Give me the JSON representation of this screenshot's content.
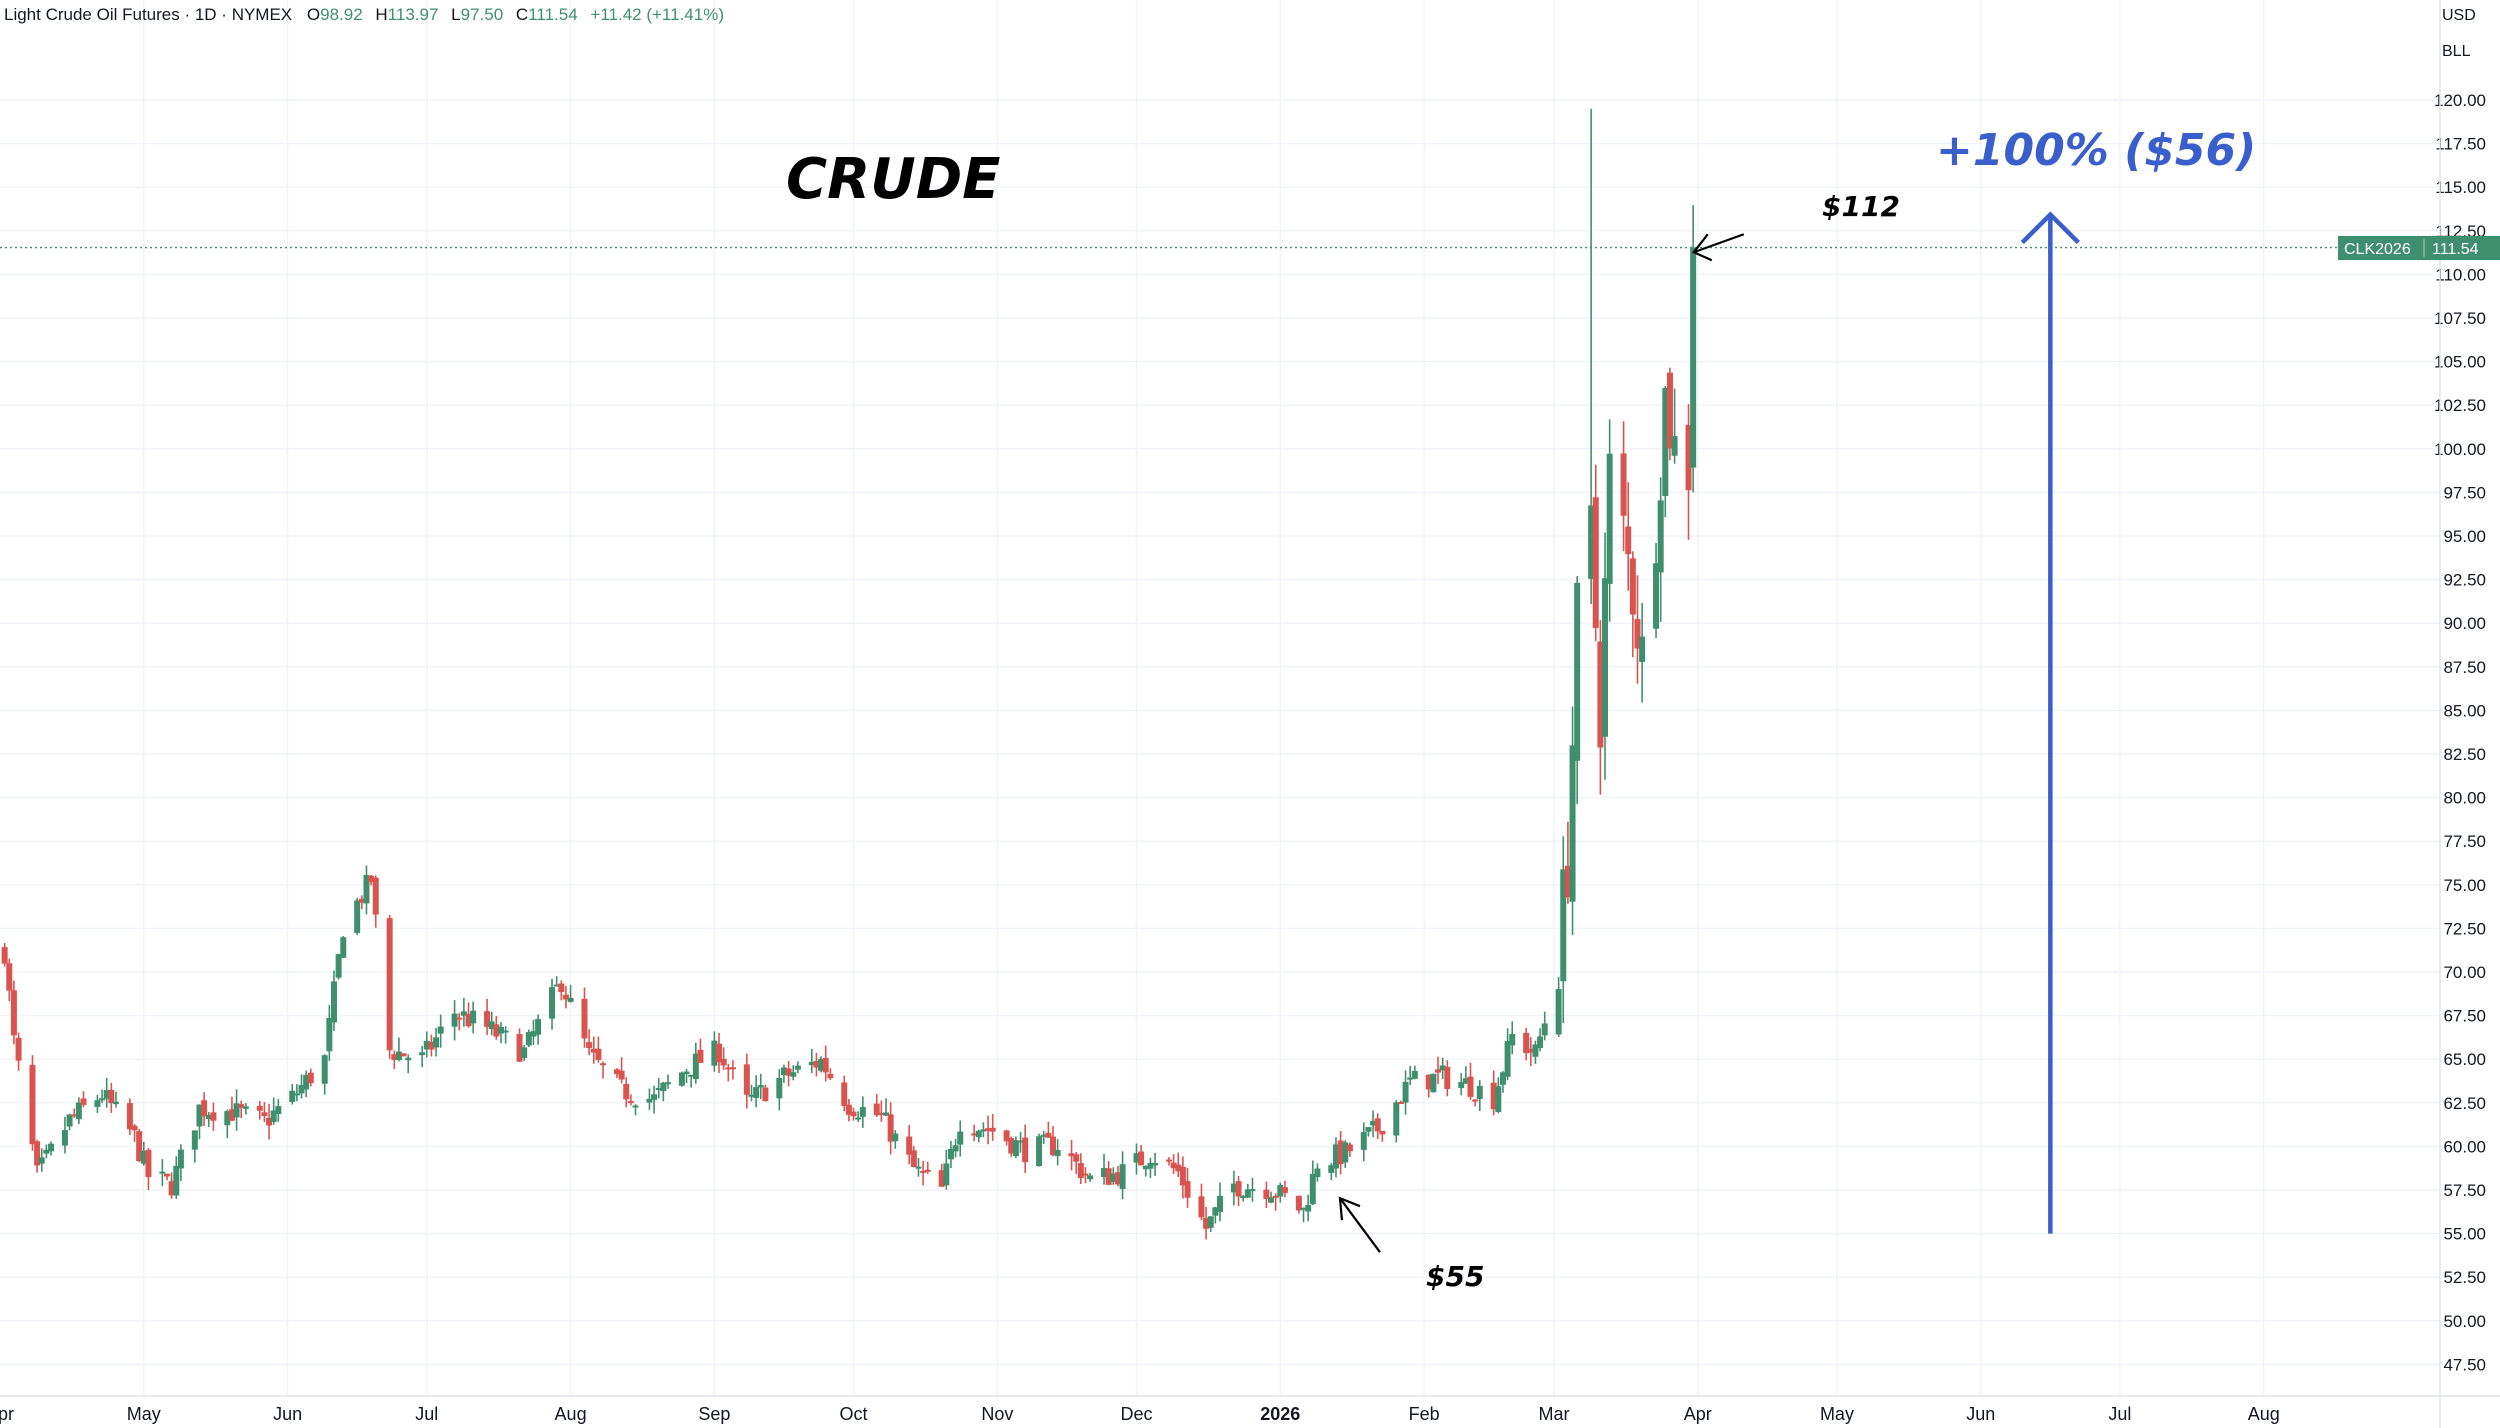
{
  "header": {
    "symbol_name": "Light Crude Oil Futures · 1D · NYMEX",
    "open_label": "O",
    "open_value": "98.92",
    "high_label": "H",
    "high_value": "113.97",
    "low_label": "L",
    "low_value": "97.50",
    "close_label": "C",
    "close_value": "111.54",
    "change": "+11.42 (+11.41%)"
  },
  "currency": {
    "currency": "USD",
    "unit": "BLL"
  },
  "price_tag": {
    "symbol": "CLK2026",
    "price": "111.54"
  },
  "annotations": {
    "title": "CRUDE",
    "high_callout": "$112",
    "low_callout": "$55",
    "gain_callout": "+100% ($56)"
  },
  "colors": {
    "up": "#3f8f6f",
    "down": "#d9534f",
    "accent_blue": "#3a5fcd",
    "grid": "#f0f3fa",
    "price_line": "#3f8f6f"
  },
  "chart_data": {
    "type": "candlestick",
    "title": "CRUDE",
    "series": [
      {
        "name": "CLK2026"
      }
    ],
    "ylim": [
      45.5,
      122.5
    ],
    "y_ticks": [
      "120.00",
      "117.50",
      "115.00",
      "112.50",
      "110.00",
      "107.50",
      "105.00",
      "102.50",
      "100.00",
      "97.50",
      "95.00",
      "92.50",
      "90.00",
      "87.50",
      "85.00",
      "82.50",
      "80.00",
      "77.50",
      "75.00",
      "72.50",
      "70.00",
      "67.50",
      "65.00",
      "62.50",
      "60.00",
      "57.50",
      "55.00",
      "52.50",
      "50.00",
      "47.50"
    ],
    "x_ticks": [
      "May",
      "Jun",
      "Jul",
      "Aug",
      "Sep",
      "Oct",
      "Nov",
      "Dec",
      "2026",
      "Feb",
      "Mar",
      "Apr",
      "May",
      "Jun",
      "Jul",
      "Aug"
    ],
    "x_tick_dates": [
      "2025-05-01",
      "2025-06-01",
      "2025-07-01",
      "2025-08-01",
      "2025-09-01",
      "2025-10-01",
      "2025-11-01",
      "2025-12-01",
      "2026-01-01",
      "2026-02-01",
      "2026-03-01",
      "2026-04-01",
      "2026-05-01",
      "2026-06-01",
      "2026-07-01",
      "2026-08-01"
    ],
    "edge_labels": [
      "Apr"
    ],
    "x_range": [
      "2025-03-31",
      "2026-09-08"
    ],
    "last_price": 111.54,
    "close_path": [
      [
        "2025-04-01",
        71.2
      ],
      [
        "2025-04-03",
        66.0
      ],
      [
        "2025-04-08",
        58.3
      ],
      [
        "2025-04-15",
        61.5
      ],
      [
        "2025-04-22",
        63.0
      ],
      [
        "2025-04-29",
        60.5
      ],
      [
        "2025-05-02",
        58.3
      ],
      [
        "2025-05-07",
        57.8
      ],
      [
        "2025-05-13",
        62.2
      ],
      [
        "2025-05-20",
        62.0
      ],
      [
        "2025-05-27",
        61.4
      ],
      [
        "2025-06-02",
        62.8
      ],
      [
        "2025-06-09",
        65.0
      ],
      [
        "2025-06-13",
        72.6
      ],
      [
        "2025-06-19",
        75.3
      ],
      [
        "2025-06-23",
        65.5
      ],
      [
        "2025-06-30",
        65.0
      ],
      [
        "2025-07-07",
        67.7
      ],
      [
        "2025-07-14",
        66.8
      ],
      [
        "2025-07-22",
        65.4
      ],
      [
        "2025-07-30",
        69.5
      ],
      [
        "2025-08-05",
        65.2
      ],
      [
        "2025-08-12",
        63.2
      ],
      [
        "2025-08-19",
        62.7
      ],
      [
        "2025-08-26",
        64.5
      ],
      [
        "2025-09-02",
        65.5
      ],
      [
        "2025-09-08",
        62.5
      ],
      [
        "2025-09-16",
        64.0
      ],
      [
        "2025-09-24",
        64.9
      ],
      [
        "2025-09-30",
        62.4
      ],
      [
        "2025-10-07",
        61.7
      ],
      [
        "2025-10-14",
        58.7
      ],
      [
        "2025-10-20",
        57.5
      ],
      [
        "2025-10-24",
        61.5
      ],
      [
        "2025-10-31",
        60.9
      ],
      [
        "2025-11-07",
        59.8
      ],
      [
        "2025-11-14",
        60.1
      ],
      [
        "2025-11-21",
        58.1
      ],
      [
        "2025-11-28",
        58.5
      ],
      [
        "2025-12-04",
        59.6
      ],
      [
        "2025-12-10",
        58.5
      ],
      [
        "2025-12-16",
        55.3
      ],
      [
        "2025-12-22",
        57.8
      ],
      [
        "2025-12-30",
        57.6
      ],
      [
        "2026-01-06",
        56.3
      ],
      [
        "2026-01-09",
        59.1
      ],
      [
        "2026-01-15",
        59.6
      ],
      [
        "2026-01-22",
        61.0
      ],
      [
        "2026-01-29",
        63.7
      ],
      [
        "2026-02-05",
        64.0
      ],
      [
        "2026-02-11",
        63.5
      ],
      [
        "2026-02-16",
        62.8
      ],
      [
        "2026-02-20",
        66.3
      ],
      [
        "2026-02-25",
        65.3
      ],
      [
        "2026-02-27",
        67.2
      ],
      [
        "2026-03-02",
        71.0
      ],
      [
        "2026-03-04",
        76.5
      ],
      [
        "2026-03-06",
        90.0
      ],
      [
        "2026-03-09",
        95.0
      ],
      [
        "2026-03-11",
        85.0
      ],
      [
        "2026-03-13",
        98.5
      ],
      [
        "2026-03-16",
        95.0
      ],
      [
        "2026-03-18",
        92.0
      ],
      [
        "2026-03-20",
        88.0
      ],
      [
        "2026-03-23",
        96.0
      ],
      [
        "2026-03-25",
        103.0
      ],
      [
        "2026-03-27",
        100.0
      ],
      [
        "2026-03-30",
        99.0
      ],
      [
        "2026-03-31",
        111.54
      ]
    ],
    "callouts": [
      {
        "label": "$112",
        "date": "2026-04-01",
        "value": 111.5
      },
      {
        "label": "$55",
        "date": "2026-01-13",
        "value": 56.8
      }
    ],
    "gain_arrow": {
      "label": "+100% ($56)",
      "date": "2026-06-16",
      "from": 55,
      "to": 112
    }
  }
}
